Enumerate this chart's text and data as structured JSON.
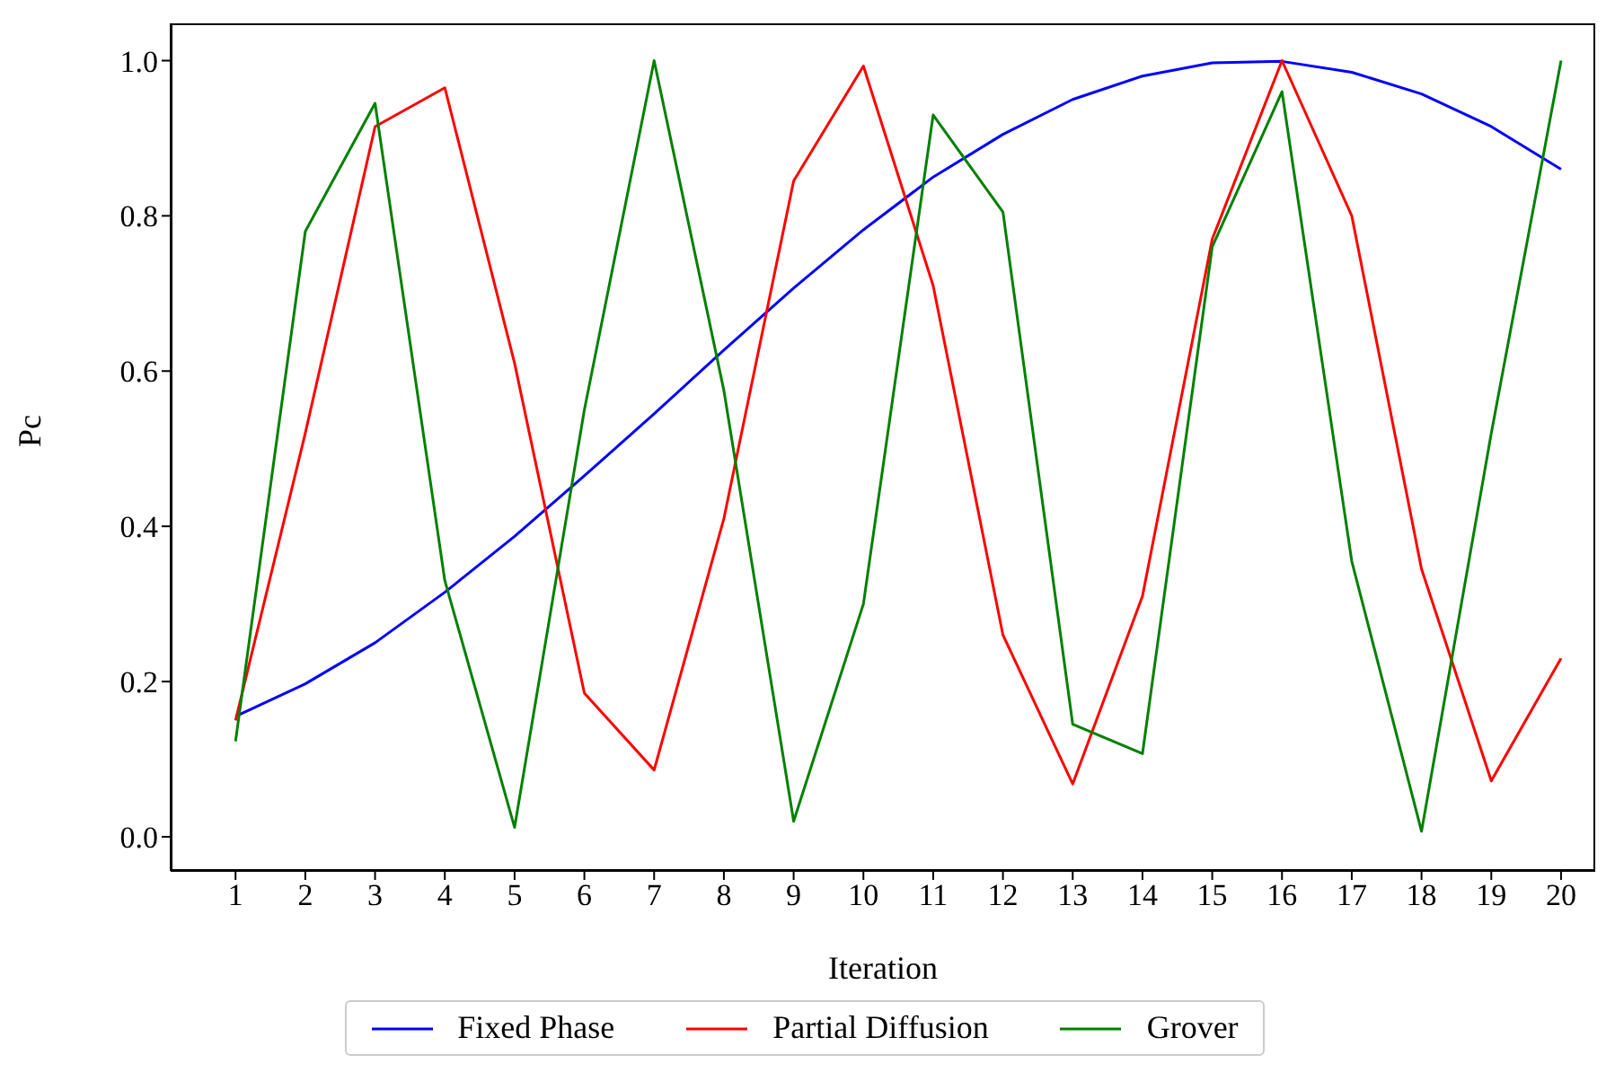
{
  "chart_data": {
    "type": "line",
    "xlabel": "Iteration",
    "ylabel": "Pc",
    "x": [
      1,
      2,
      3,
      4,
      5,
      6,
      7,
      8,
      9,
      10,
      11,
      12,
      13,
      14,
      15,
      16,
      17,
      18,
      19,
      20
    ],
    "series": [
      {
        "name": "Fixed Phase",
        "color": "#0000ff",
        "values": [
          0.155,
          0.197,
          0.25,
          0.315,
          0.387,
          0.465,
          0.545,
          0.627,
          0.707,
          0.782,
          0.85,
          0.905,
          0.95,
          0.98,
          0.997,
          0.999,
          0.985,
          0.957,
          0.915,
          0.86
        ]
      },
      {
        "name": "Partial Diffusion",
        "color": "#ff0000",
        "values": [
          0.15,
          0.52,
          0.915,
          0.965,
          0.61,
          0.185,
          0.086,
          0.41,
          0.845,
          0.993,
          0.71,
          0.26,
          0.068,
          0.31,
          0.77,
          1.0,
          0.8,
          0.345,
          0.072,
          0.23
        ]
      },
      {
        "name": "Grover",
        "color": "#008000",
        "values": [
          0.123,
          0.78,
          0.945,
          0.33,
          0.012,
          0.55,
          1.0,
          0.575,
          0.02,
          0.3,
          0.93,
          0.805,
          0.145,
          0.107,
          0.76,
          0.96,
          0.355,
          0.007,
          0.52,
          1.0
        ]
      }
    ],
    "xlim": [
      0.07,
      20.49
    ],
    "xticks": [
      1,
      2,
      3,
      4,
      5,
      6,
      7,
      8,
      9,
      10,
      11,
      12,
      13,
      14,
      15,
      16,
      17,
      18,
      19,
      20
    ],
    "ylim": [
      -0.044,
      1.048
    ],
    "yticks": [
      {
        "value": 0,
        "label": "0.0"
      },
      {
        "value": 0.2,
        "label": "0.2"
      },
      {
        "value": 0.4,
        "label": "0.4"
      },
      {
        "value": 0.6,
        "label": "0.6"
      },
      {
        "value": 0.8,
        "label": "0.8"
      },
      {
        "value": 1,
        "label": "1.0"
      }
    ],
    "legend": "bottom",
    "line_style": "solid"
  }
}
